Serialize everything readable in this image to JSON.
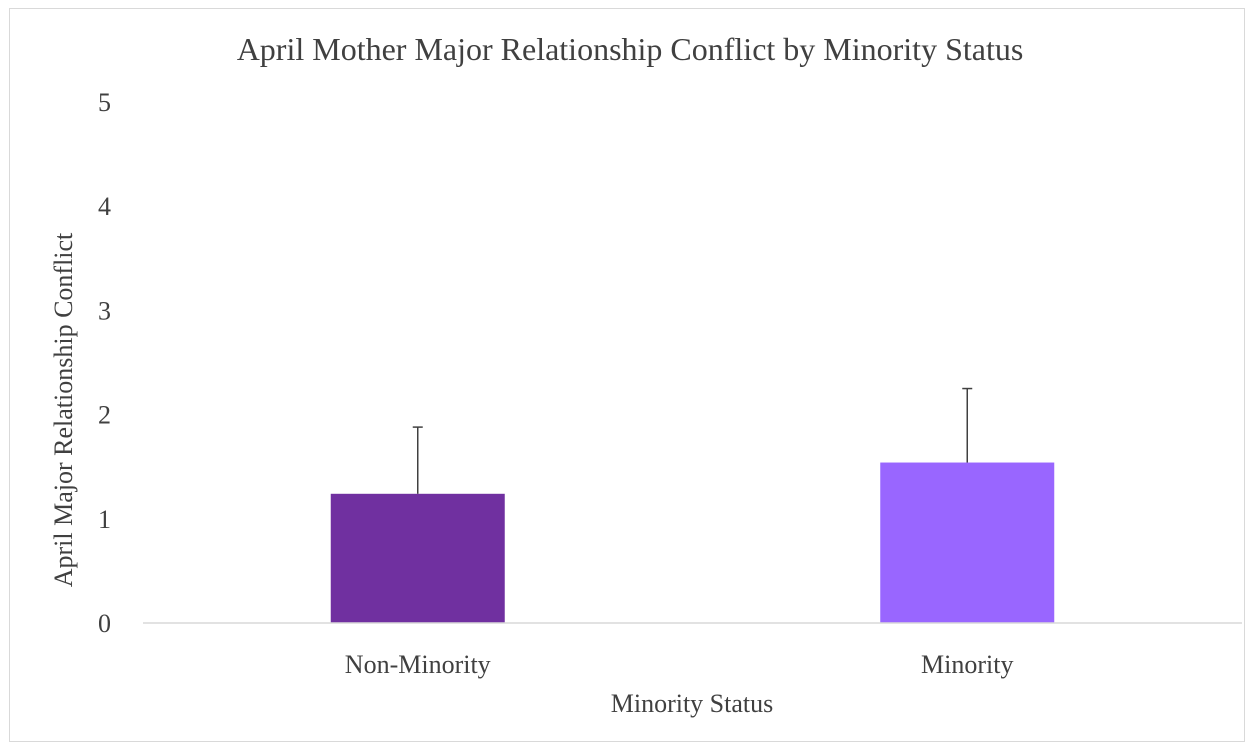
{
  "chart_data": {
    "type": "bar",
    "title": "April Mother Major Relationship Conflict by Minority Status",
    "xlabel": "Minority Status",
    "ylabel": "April Major Relationship Conflict",
    "categories": [
      "Non-Minority",
      "Minority"
    ],
    "values": [
      1.24,
      1.54
    ],
    "error_plus": [
      0.64,
      0.71
    ],
    "bar_colors": [
      "#7030a0",
      "#9966ff"
    ],
    "ylim": [
      0,
      5
    ],
    "yticks": [
      "0",
      "1",
      "2",
      "3",
      "4",
      "5"
    ],
    "grid": false,
    "legend": "none"
  }
}
